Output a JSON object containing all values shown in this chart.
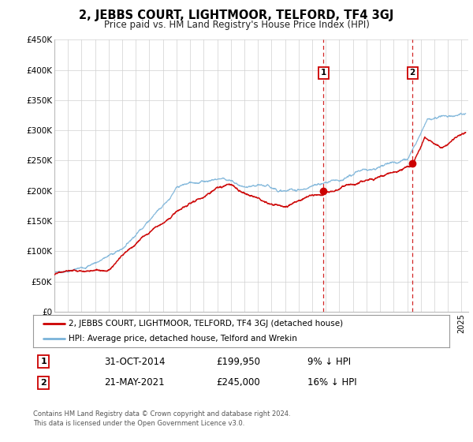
{
  "title": "2, JEBBS COURT, LIGHTMOOR, TELFORD, TF4 3GJ",
  "subtitle": "Price paid vs. HM Land Registry's House Price Index (HPI)",
  "legend_label_red": "2, JEBBS COURT, LIGHTMOOR, TELFORD, TF4 3GJ (detached house)",
  "legend_label_blue": "HPI: Average price, detached house, Telford and Wrekin",
  "marker1_date": "31-OCT-2014",
  "marker1_price": 199950,
  "marker1_hpi_diff": "9% ↓ HPI",
  "marker1_x": 2014.83,
  "marker2_date": "21-MAY-2021",
  "marker2_price": 245000,
  "marker2_hpi_diff": "16% ↓ HPI",
  "marker2_x": 2021.38,
  "xlim": [
    1995,
    2025.5
  ],
  "ylim": [
    0,
    450000
  ],
  "ytick_values": [
    0,
    50000,
    100000,
    150000,
    200000,
    250000,
    300000,
    350000,
    400000,
    450000
  ],
  "ytick_labels": [
    "£0",
    "£50K",
    "£100K",
    "£150K",
    "£200K",
    "£250K",
    "£300K",
    "£350K",
    "£400K",
    "£450K"
  ],
  "footer_line1": "Contains HM Land Registry data © Crown copyright and database right 2024.",
  "footer_line2": "This data is licensed under the Open Government Licence v3.0.",
  "red_color": "#cc0000",
  "blue_color": "#7ab3d9",
  "marker_dot_color": "#cc0000",
  "vline_color": "#cc0000",
  "background_color": "#ffffff",
  "plot_bg_color": "#ffffff",
  "grid_color": "#d0d0d0"
}
